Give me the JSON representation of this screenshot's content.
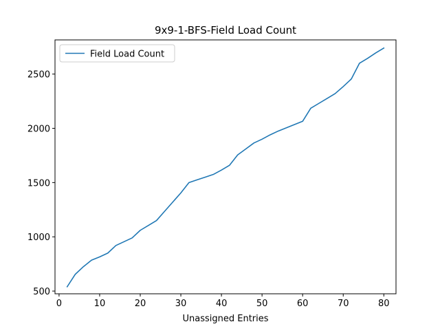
{
  "chart_data": {
    "type": "line",
    "title": "9x9-1-BFS-Field Load Count",
    "xlabel": "Unassigned Entries",
    "ylabel": "",
    "xlim": [
      -1,
      83
    ],
    "ylim": [
      475,
      2815
    ],
    "xticks": [
      0,
      10,
      20,
      30,
      40,
      50,
      60,
      70,
      80
    ],
    "yticks": [
      500,
      1000,
      1500,
      2000,
      2500
    ],
    "grid": false,
    "legend_position": "top-left",
    "series": [
      {
        "name": "Field Load Count",
        "color": "#1f77b4",
        "x": [
          2,
          4,
          6,
          8,
          10,
          12,
          14,
          16,
          18,
          20,
          22,
          24,
          26,
          28,
          30,
          32,
          34,
          36,
          38,
          40,
          42,
          44,
          46,
          48,
          50,
          52,
          54,
          56,
          58,
          60,
          62,
          64,
          66,
          68,
          70,
          72,
          74,
          76,
          78,
          80
        ],
        "y": [
          540,
          655,
          725,
          785,
          815,
          850,
          920,
          955,
          990,
          1060,
          1105,
          1150,
          1235,
          1320,
          1405,
          1500,
          1525,
          1550,
          1575,
          1615,
          1660,
          1755,
          1810,
          1865,
          1900,
          1940,
          1975,
          2005,
          2035,
          2065,
          2185,
          2230,
          2275,
          2320,
          2385,
          2455,
          2600,
          2645,
          2695,
          2740
        ]
      }
    ]
  }
}
